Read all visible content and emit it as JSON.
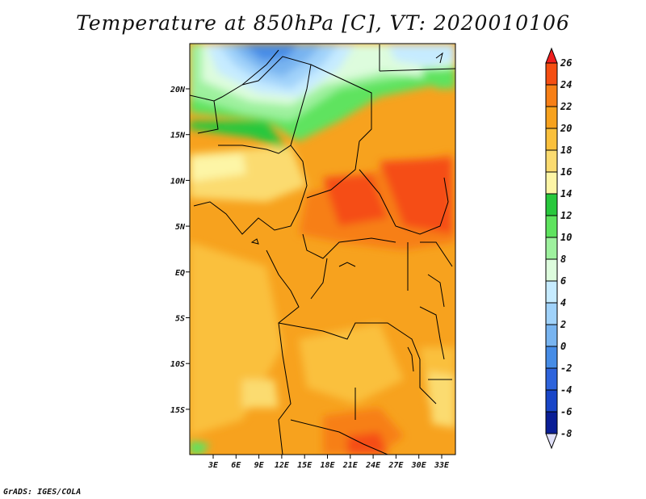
{
  "title": "Temperature at 850hPa [C], VT: 2020010106",
  "footer": "GrADS: IGES/COLA",
  "map": {
    "type": "filled contour map",
    "field": "temperature at 850hPa",
    "units": "C",
    "lat_labels": [
      "20N",
      "15N",
      "10N",
      "5N",
      "EQ",
      "5S",
      "10S",
      "15S"
    ],
    "lon_labels": [
      "3E",
      "6E",
      "9E",
      "12E",
      "15E",
      "18E",
      "21E",
      "24E",
      "27E",
      "30E",
      "33E"
    ]
  },
  "colorbar": {
    "levels": [
      "26",
      "24",
      "22",
      "20",
      "18",
      "16",
      "14",
      "12",
      "10",
      "8",
      "6",
      "4",
      "2",
      "0",
      "-2",
      "-4",
      "-6",
      "-8"
    ],
    "colors": [
      "#f01e1e",
      "#f54e12",
      "#f77f16",
      "#f7a21e",
      "#fac03c",
      "#fbdb70",
      "#fdf5a6",
      "#28c83c",
      "#5ee35e",
      "#9ef19e",
      "#ddfcdd",
      "#c6ebff",
      "#a0d2fa",
      "#78b4f0",
      "#468ce6",
      "#2e64dc",
      "#1946c8",
      "#0a1e96",
      "#e0e0f8"
    ]
  }
}
